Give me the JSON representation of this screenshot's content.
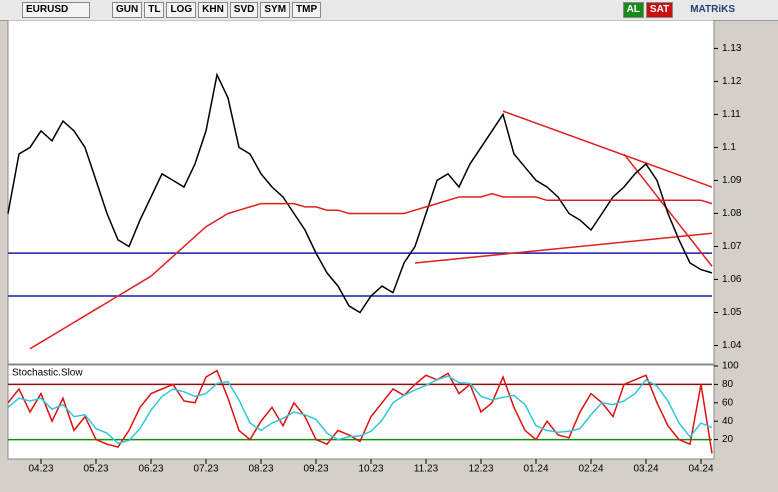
{
  "toolbar": {
    "symbol": "EURUSD",
    "buttons": [
      "GUN",
      "TL",
      "LOG",
      "KHN",
      "SVD",
      "SYM",
      "TMP"
    ],
    "buy": "AL",
    "sell": "SAT",
    "brand": "MATRiKS"
  },
  "chart_data": [
    {
      "type": "line",
      "categories": [
        null,
        null,
        null,
        "04.23",
        null,
        null,
        null,
        null,
        "05.23",
        null,
        null,
        null,
        null,
        "06.23",
        null,
        null,
        null,
        null,
        "07.23",
        null,
        null,
        null,
        null,
        "08.23",
        null,
        null,
        null,
        null,
        "09.23",
        null,
        null,
        null,
        null,
        "10.23",
        null,
        null,
        null,
        null,
        "11.23",
        null,
        null,
        null,
        null,
        "12.23",
        null,
        null,
        null,
        null,
        "01.24",
        null,
        null,
        null,
        null,
        "02.24",
        null,
        null,
        null,
        null,
        "03.24",
        null,
        null,
        null,
        null,
        "04.24",
        null
      ],
      "series": [
        {
          "color": "#000000",
          "values": [
            1.08,
            1.098,
            1.1,
            1.105,
            1.102,
            1.108,
            1.105,
            1.1,
            1.09,
            1.08,
            1.072,
            1.07,
            1.078,
            1.085,
            1.092,
            1.09,
            1.088,
            1.095,
            1.105,
            1.122,
            1.115,
            1.1,
            1.098,
            1.092,
            1.088,
            1.085,
            1.08,
            1.075,
            1.068,
            1.062,
            1.058,
            1.052,
            1.05,
            1.055,
            1.058,
            1.056,
            1.065,
            1.07,
            1.08,
            1.09,
            1.092,
            1.088,
            1.095,
            1.1,
            1.105,
            1.11,
            1.098,
            1.094,
            1.09,
            1.088,
            1.085,
            1.08,
            1.078,
            1.075,
            1.08,
            1.085,
            1.088,
            1.092,
            1.095,
            1.09,
            1.08,
            1.072,
            1.065,
            1.063,
            1.062
          ]
        },
        {
          "color": "#e02020",
          "values": [
            null,
            null,
            1.039,
            1.041,
            1.043,
            1.045,
            1.047,
            1.049,
            1.051,
            1.053,
            1.055,
            1.057,
            1.059,
            1.061,
            1.064,
            1.067,
            1.07,
            1.073,
            1.076,
            1.078,
            1.08,
            1.081,
            1.082,
            1.083,
            1.083,
            1.083,
            1.083,
            1.082,
            1.082,
            1.081,
            1.081,
            1.08,
            1.08,
            1.08,
            1.08,
            1.08,
            1.08,
            1.081,
            1.082,
            1.083,
            1.084,
            1.085,
            1.085,
            1.085,
            1.086,
            1.085,
            1.085,
            1.085,
            1.085,
            1.084,
            1.084,
            1.084,
            1.084,
            1.084,
            1.084,
            1.084,
            1.084,
            1.084,
            1.084,
            1.084,
            1.084,
            1.084,
            1.084,
            1.084,
            1.083
          ]
        }
      ],
      "hlines": [
        1.068,
        1.055
      ],
      "hline_color": "#1c1caa",
      "trendlines": [
        [
          45,
          1.111,
          64,
          1.088
        ],
        [
          37,
          1.065,
          64,
          1.074
        ],
        [
          56,
          1.098,
          64,
          1.064
        ]
      ],
      "trend_color": "#e02020",
      "ylim": [
        1.035,
        1.138
      ],
      "yticks": [
        1.04,
        1.05,
        1.06,
        1.07,
        1.08,
        1.09,
        1.1,
        1.11,
        1.12,
        1.13
      ]
    },
    {
      "type": "line",
      "title": "Stochastic.Slow",
      "series": [
        {
          "color": "#e01010",
          "values": [
            60,
            75,
            50,
            70,
            40,
            65,
            30,
            45,
            20,
            15,
            12,
            30,
            55,
            70,
            75,
            80,
            62,
            60,
            88,
            95,
            65,
            30,
            20,
            40,
            55,
            35,
            60,
            45,
            20,
            15,
            30,
            25,
            18,
            45,
            60,
            75,
            68,
            80,
            90,
            85,
            92,
            70,
            80,
            50,
            60,
            88,
            55,
            30,
            20,
            40,
            25,
            22,
            50,
            70,
            60,
            45,
            80,
            85,
            90,
            60,
            35,
            20,
            15,
            80,
            5
          ]
        },
        {
          "color": "#30c8d8",
          "values": [
            55,
            65,
            62,
            65,
            53,
            58,
            45,
            47,
            32,
            27,
            16,
            19,
            32,
            52,
            67,
            75,
            72,
            67,
            70,
            81,
            83,
            63,
            38,
            30,
            38,
            43,
            50,
            47,
            42,
            27,
            20,
            23,
            24,
            29,
            41,
            60,
            68,
            74,
            79,
            85,
            89,
            82,
            81,
            67,
            63,
            66,
            68,
            58,
            35,
            30,
            28,
            29,
            32,
            47,
            60,
            58,
            62,
            70,
            85,
            78,
            62,
            38,
            23,
            38,
            33
          ]
        }
      ],
      "hlines": [
        80,
        20
      ],
      "hline_colors": [
        "#8b1010",
        "#109010"
      ],
      "ylim": [
        0,
        100
      ],
      "yticks": [
        20,
        40,
        60,
        80,
        100
      ]
    }
  ]
}
